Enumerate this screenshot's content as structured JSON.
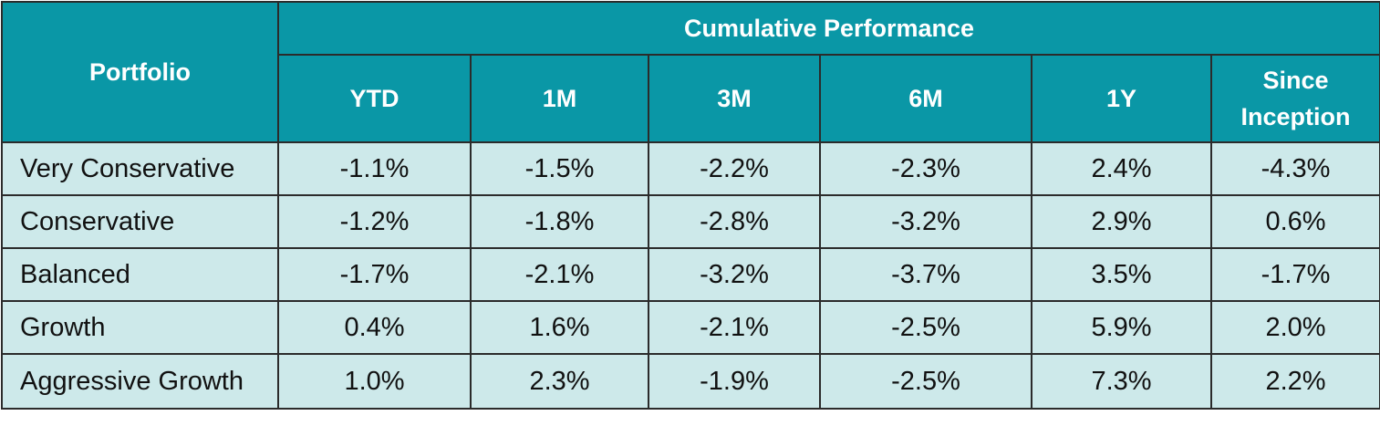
{
  "table": {
    "portfolio_header": "Portfolio",
    "group_header": "Cumulative Performance",
    "columns": [
      "YTD",
      "1M",
      "3M",
      "6M",
      "1Y",
      "Since Inception"
    ],
    "rows": [
      {
        "name": "Very Conservative",
        "values": [
          "-1.1%",
          "-1.5%",
          "-2.2%",
          "-2.3%",
          "2.4%",
          "-4.3%"
        ]
      },
      {
        "name": "Conservative",
        "values": [
          "-1.2%",
          "-1.8%",
          "-2.8%",
          "-3.2%",
          "2.9%",
          "0.6%"
        ]
      },
      {
        "name": "Balanced",
        "values": [
          "-1.7%",
          "-2.1%",
          "-3.2%",
          "-3.7%",
          "3.5%",
          "-1.7%"
        ]
      },
      {
        "name": "Growth",
        "values": [
          "0.4%",
          "1.6%",
          "-2.1%",
          "-2.5%",
          "5.9%",
          "2.0%"
        ]
      },
      {
        "name": "Aggressive Growth",
        "values": [
          "1.0%",
          "2.3%",
          "-1.9%",
          "-2.5%",
          "7.3%",
          "2.2%"
        ]
      }
    ]
  },
  "colors": {
    "header_bg": "#0a97a6",
    "body_bg": "#cde9ea",
    "border": "#2b2b2b",
    "header_text": "#ffffff"
  }
}
